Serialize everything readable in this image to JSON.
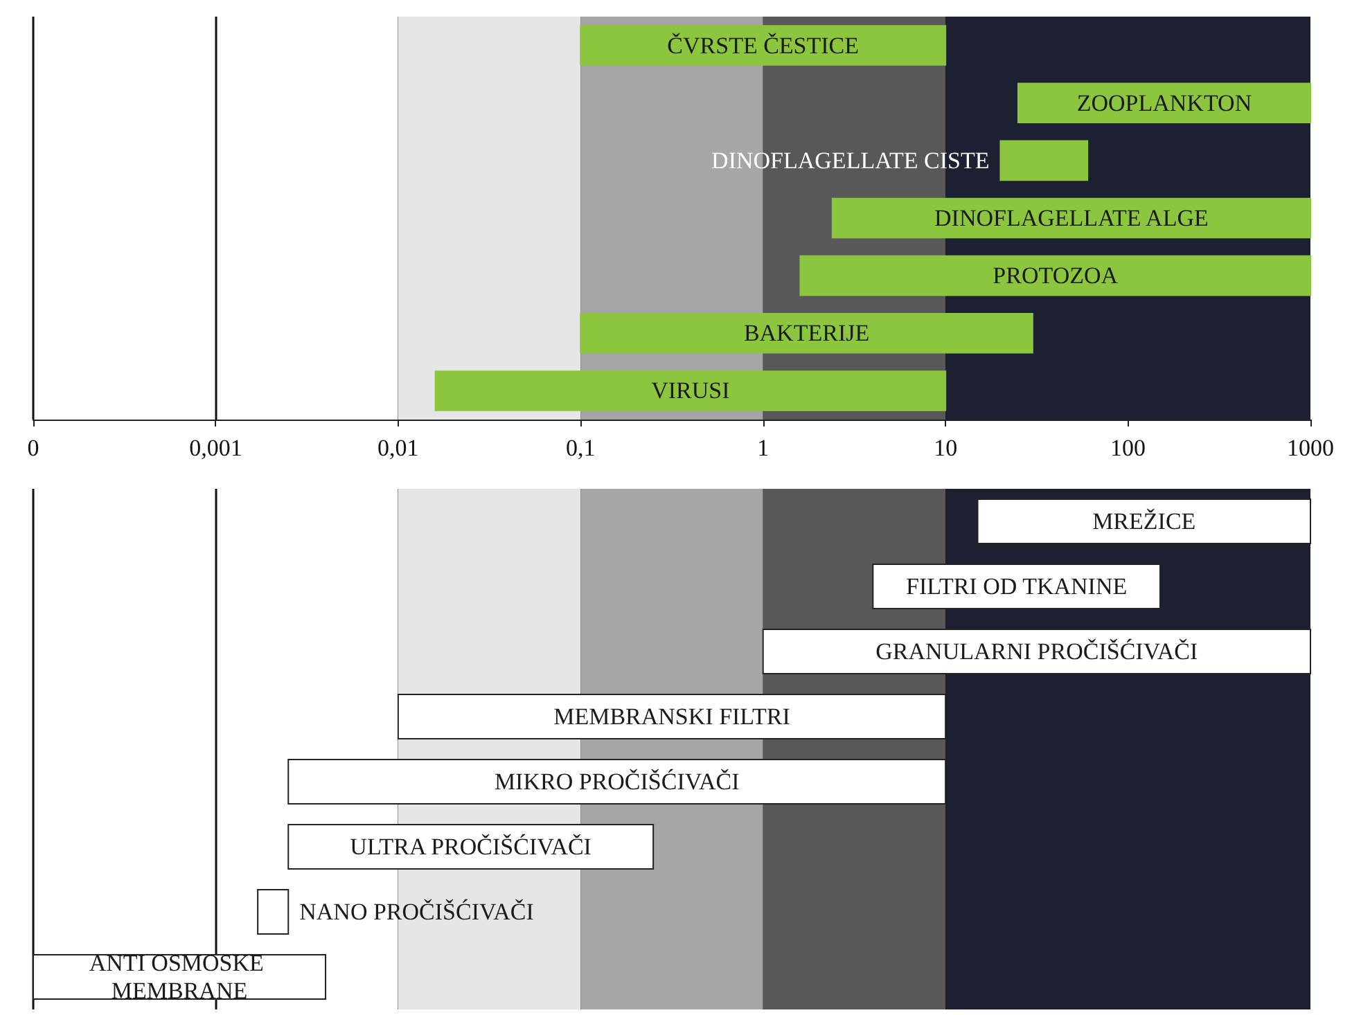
{
  "chart_data": [
    {
      "type": "bar",
      "orientation": "horizontal",
      "log": "x",
      "tick_labels": "x",
      "grid": "x",
      "color": "#8cc63f",
      "categories": [
        "ČVRSTE ČESTICE",
        "ZOOPLANKTON",
        "DINOFLAGELLATE CISTE",
        "DINOFLAGELLATE ALGE",
        "PROTOZOA",
        "BAKTERIJE",
        "VIRUSI"
      ],
      "base": [
        0.1,
        25,
        20,
        2.4,
        1.6,
        0.1,
        0.016
      ],
      "values": [
        9.9,
        975,
        40,
        997.6,
        998.4,
        29.9,
        9.984
      ],
      "xlim": [
        0.0001,
        1000
      ],
      "xticks": [
        {
          "value": 0.0001,
          "label": "0"
        },
        {
          "value": 0.001,
          "label": "0,001"
        },
        {
          "value": 0.01,
          "label": "0,01"
        },
        {
          "value": 0.1,
          "label": "0,1"
        },
        {
          "value": 1,
          "label": "1"
        },
        {
          "value": 10,
          "label": "10"
        },
        {
          "value": 100,
          "label": "100"
        },
        {
          "value": 1000,
          "label": "1000"
        }
      ],
      "bands": [
        {
          "axis": "x",
          "from": 0.01,
          "to": 0.1,
          "color": "#e6e6e6"
        },
        {
          "axis": "x",
          "from": 0.1,
          "to": 1,
          "color": "#a6a6a6"
        },
        {
          "axis": "x",
          "from": 1,
          "to": 10,
          "color": "#585858"
        },
        {
          "axis": "x",
          "from": 10,
          "to": 1000,
          "color": "#1c2030"
        }
      ]
    },
    {
      "type": "bar",
      "orientation": "horizontal",
      "log": "x",
      "tick_labels": false,
      "grid": "x",
      "color": "#ffffff",
      "categories": [
        "MREŽICE",
        "FILTRI OD TKANINE",
        "GRANULARNI PROČIŠĆIVAČI",
        "MEMBRANSKI FILTRI",
        "MIKRO PROČIŠĆIVAČI",
        "ULTRA PROČIŠĆIVAČI",
        "NANO PROČIŠĆIVAČI",
        "ANTI OSMOSKE MEMBRANE"
      ],
      "base": [
        15,
        4,
        1,
        0.01,
        0.0025,
        0.0025,
        0.0017,
        0.0001
      ],
      "values": [
        985,
        146,
        999,
        9.99,
        9.9975,
        0.2475,
        0.0008,
        0.0039
      ],
      "xlim": [
        0.0001,
        1000
      ],
      "xticks": [
        {
          "value": 0.0001,
          "label": null
        },
        {
          "value": 0.001,
          "label": null
        },
        {
          "value": 0.01,
          "label": null
        },
        {
          "value": 0.1,
          "label": null
        },
        {
          "value": 1,
          "label": null
        },
        {
          "value": 10,
          "label": null
        },
        {
          "value": 100,
          "label": null
        },
        {
          "value": 1000,
          "label": null
        }
      ],
      "bands": [
        {
          "axis": "x",
          "from": 0.01,
          "to": 0.1,
          "color": "#e6e6e6"
        },
        {
          "axis": "x",
          "from": 0.1,
          "to": 1,
          "color": "#a6a6a6"
        },
        {
          "axis": "x",
          "from": 1,
          "to": 10,
          "color": "#585858"
        },
        {
          "axis": "x",
          "from": 10,
          "to": 1000,
          "color": "#1c2030"
        }
      ]
    }
  ]
}
